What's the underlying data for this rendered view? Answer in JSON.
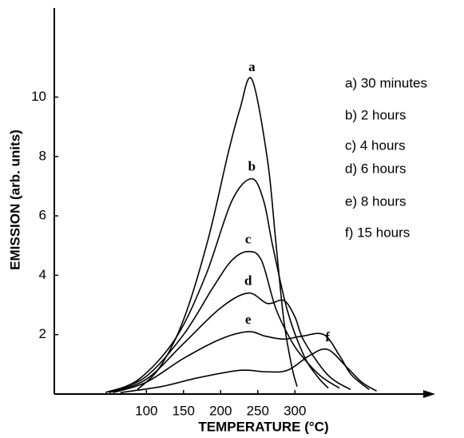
{
  "chart_data": {
    "type": "line",
    "x_label": "TEMPERATURE (°C)",
    "y_label": "EMISSION (arb. units)",
    "xlim": [
      -24,
      489
    ],
    "ylim": [
      0,
      13
    ],
    "xticks": [
      100,
      150,
      200,
      250,
      300
    ],
    "yticks": [
      2,
      4,
      6,
      8,
      10
    ],
    "series": [
      {
        "name": "a) 30 minutes",
        "label": "a",
        "color": "#000000",
        "x": [
          88,
          118,
          150,
          183,
          210,
          226,
          242,
          263,
          274,
          285,
          296,
          303
        ],
        "values": [
          0.15,
          0.9,
          2.5,
          5.2,
          8.1,
          9.6,
          10.6,
          7.9,
          5.2,
          2.5,
          0.9,
          0.25
        ]
      },
      {
        "name": "b) 2 hours",
        "label": "b",
        "color": "#000000",
        "x": [
          45,
          90,
          140,
          180,
          215,
          242,
          258,
          270,
          290,
          312,
          330,
          345
        ],
        "values": [
          0.05,
          0.5,
          1.9,
          4.0,
          6.5,
          7.25,
          6.5,
          5.0,
          2.8,
          1.3,
          0.6,
          0.2
        ]
      },
      {
        "name": "c) 4 hours",
        "label": "c",
        "color": "#000000",
        "x": [
          50,
          100,
          150,
          190,
          215,
          237,
          255,
          274,
          295,
          312,
          335,
          360
        ],
        "values": [
          0.05,
          0.6,
          2.0,
          3.6,
          4.5,
          4.8,
          4.5,
          2.9,
          1.8,
          1.2,
          0.6,
          0.2
        ]
      },
      {
        "name": "d) 6 hours",
        "label": "d",
        "color": "#000000",
        "x": [
          50,
          100,
          150,
          200,
          237,
          263,
          285,
          300,
          312,
          344,
          375
        ],
        "values": [
          0.05,
          0.5,
          1.7,
          2.9,
          3.4,
          3.05,
          3.15,
          2.6,
          1.8,
          0.65,
          0.15
        ]
      },
      {
        "name": "e) 8 hours",
        "label": "e",
        "color": "#000000",
        "x": [
          55,
          100,
          150,
          200,
          237,
          260,
          285,
          310,
          339,
          360,
          376,
          400
        ],
        "values": [
          0.05,
          0.4,
          1.2,
          1.85,
          2.1,
          1.95,
          1.85,
          1.95,
          2.0,
          1.3,
          0.65,
          0.15
        ]
      },
      {
        "name": "f) 15 hours",
        "label": "f",
        "color": "#000000",
        "x": [
          65,
          120,
          170,
          226,
          260,
          290,
          320,
          344,
          370,
          390,
          410
        ],
        "values": [
          0.05,
          0.25,
          0.55,
          0.8,
          0.75,
          0.8,
          1.3,
          1.5,
          0.9,
          0.4,
          0.1
        ]
      }
    ]
  }
}
